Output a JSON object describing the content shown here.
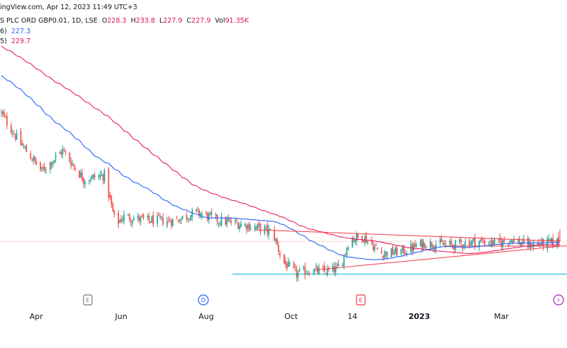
{
  "header": {
    "source": "ingView.com, Apr 12, 2023 11:49 UTC+3",
    "symbol": "S PLC ORD GBP0.01, 1D, LSE",
    "o_label": "O",
    "o_value": "228.3",
    "h_label": "H",
    "h_value": "233.8",
    "l_label": "L",
    "l_value": "227.9",
    "c_label": "C",
    "c_value": "227.9",
    "vol_label": "Vol",
    "vol_value": "91.35K",
    "ma1_prefix": "6)",
    "ma1_value": "227.3",
    "ma2_prefix": "5)",
    "ma2_value": "229.7"
  },
  "colors": {
    "up": "#26a69a",
    "down": "#ef5350",
    "ma_fast": "#2962ff",
    "ma_slow": "#e91e63",
    "trendline": "#f23645",
    "support": "#00bcd4",
    "price_line": "#ef5350",
    "axis_text": "#131722"
  },
  "chart_data": {
    "type": "candlestick",
    "title": "",
    "x_axis": {
      "ticks": [
        {
          "label": "Apr",
          "date": "2022-04-01"
        },
        {
          "label": "Jun",
          "date": "2022-06-01"
        },
        {
          "label": "Aug",
          "date": "2022-08-01"
        },
        {
          "label": "Oct",
          "date": "2022-10-01"
        },
        {
          "label": "14",
          "date": "2022-11-14"
        },
        {
          "label": "2023",
          "date": "2023-01-01",
          "bold": true
        },
        {
          "label": "Mar",
          "date": "2023-03-01"
        }
      ],
      "range": [
        "2022-03-06",
        "2023-04-12"
      ]
    },
    "y_axis": {
      "range": [
        206,
        345
      ],
      "visible_labels": false
    },
    "events": [
      {
        "glyph": "E",
        "date": "2022-05-08",
        "kind": "earnings"
      },
      {
        "glyph": "D",
        "date": "2022-07-30",
        "kind": "dividend"
      },
      {
        "glyph": "E",
        "date": "2022-11-20",
        "kind": "earnings"
      },
      {
        "glyph": "⚡",
        "date": "2023-04-11",
        "kind": "news"
      }
    ],
    "anchors": [
      [
        "2022-03-06",
        291
      ],
      [
        "2022-03-20",
        276
      ],
      [
        "2022-04-05",
        262
      ],
      [
        "2022-04-20",
        272
      ],
      [
        "2022-05-05",
        258
      ],
      [
        "2022-05-20",
        260
      ],
      [
        "2022-05-28",
        236
      ],
      [
        "2022-06-03",
        240
      ],
      [
        "2022-06-20",
        238
      ],
      [
        "2022-07-10",
        238
      ],
      [
        "2022-07-25",
        242
      ],
      [
        "2022-08-10",
        238
      ],
      [
        "2022-08-28",
        236
      ],
      [
        "2022-09-10",
        234
      ],
      [
        "2022-09-18",
        232
      ],
      [
        "2022-09-25",
        218
      ],
      [
        "2022-10-05",
        212
      ],
      [
        "2022-10-15",
        214
      ],
      [
        "2022-10-25",
        213
      ],
      [
        "2022-11-05",
        215
      ],
      [
        "2022-11-12",
        229
      ],
      [
        "2022-11-22",
        230
      ],
      [
        "2022-12-05",
        222
      ],
      [
        "2022-12-20",
        223
      ],
      [
        "2023-01-05",
        227
      ],
      [
        "2023-01-25",
        226
      ],
      [
        "2023-02-10",
        228
      ],
      [
        "2023-02-28",
        227
      ],
      [
        "2023-03-08",
        229
      ],
      [
        "2023-03-20",
        226
      ],
      [
        "2023-04-12",
        227.9
      ]
    ],
    "series": [
      {
        "values_ref": "ohlc",
        "count": 280
      },
      {
        "ma_period": 50,
        "last": 227.3
      },
      {
        "ma_period": 100,
        "last": 229.7
      }
    ],
    "lines": [
      {
        "kind": "trendline",
        "from": [
          "2022-09-05",
          233.5
        ],
        "to": [
          "2023-04-12",
          228.0
        ]
      },
      {
        "kind": "trendline",
        "from": [
          "2022-10-18",
          214.0
        ],
        "to": [
          "2023-04-12",
          225.5
        ]
      },
      {
        "kind": "horizontal",
        "price": 212.0,
        "from": "2022-08-20"
      },
      {
        "kind": "horizontal",
        "price": 225.6,
        "from": "2023-01-20"
      },
      {
        "kind": "price",
        "price": 227.9
      }
    ]
  }
}
